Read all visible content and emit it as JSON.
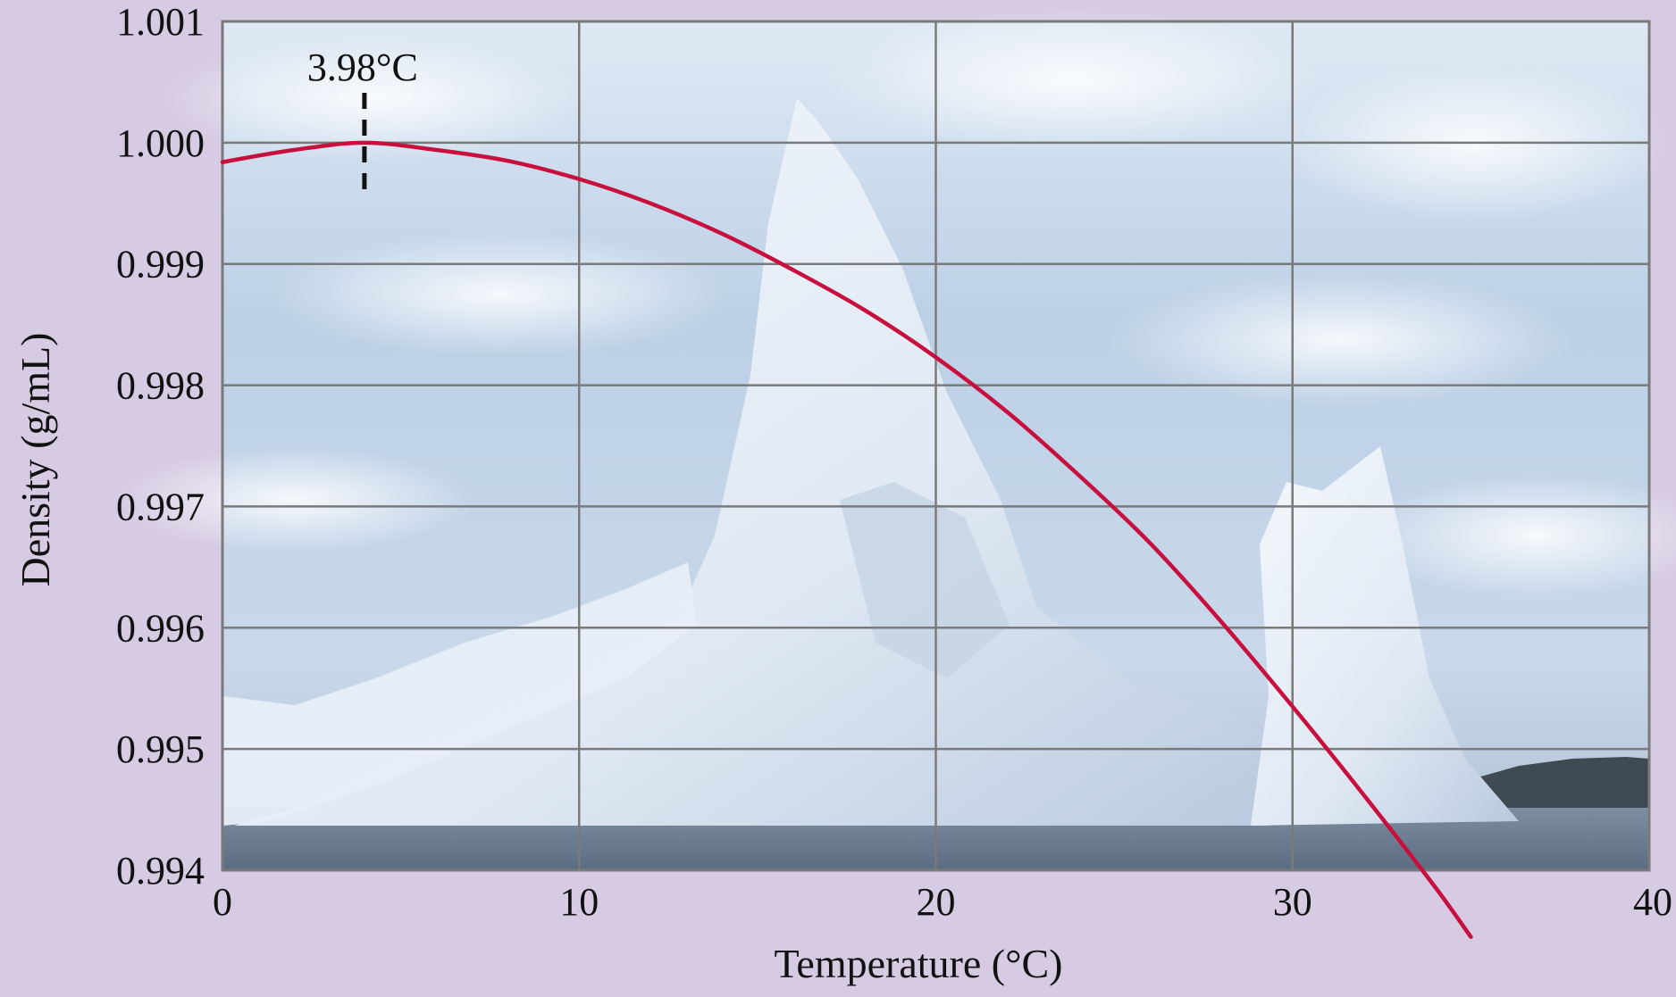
{
  "chart_data": {
    "type": "line",
    "title": "",
    "xlabel": "Temperature (°C)",
    "ylabel": "Density (g/mL)",
    "xlim": [
      0,
      40
    ],
    "ylim": [
      0.994,
      1.001
    ],
    "x_ticks": [
      "0",
      "10",
      "20",
      "30",
      "40"
    ],
    "y_ticks": [
      "1.001",
      "1.000",
      "0.999",
      "0.998",
      "0.997",
      "0.996",
      "0.995",
      "0.994"
    ],
    "grid": true,
    "background": "photograph of icebergs floating in the sea under a cloudy sky",
    "series": [
      {
        "name": "",
        "color": "#c8103e",
        "x": [
          0,
          2,
          3.98,
          6,
          8,
          10,
          12,
          14,
          16,
          18,
          20,
          22,
          24,
          26,
          28,
          30,
          32,
          34,
          35
        ],
        "y": [
          0.99984,
          0.99994,
          1.0,
          0.99994,
          0.99985,
          0.9997,
          0.9995,
          0.99925,
          0.99895,
          0.99862,
          0.99823,
          0.99778,
          0.99726,
          0.9967,
          0.99605,
          0.99535,
          0.99462,
          0.99386,
          0.99345
        ]
      }
    ],
    "annotations": [
      {
        "text": "3.98°C",
        "x": 3.98,
        "style": "dashed vertical marker at maximum density"
      }
    ]
  }
}
